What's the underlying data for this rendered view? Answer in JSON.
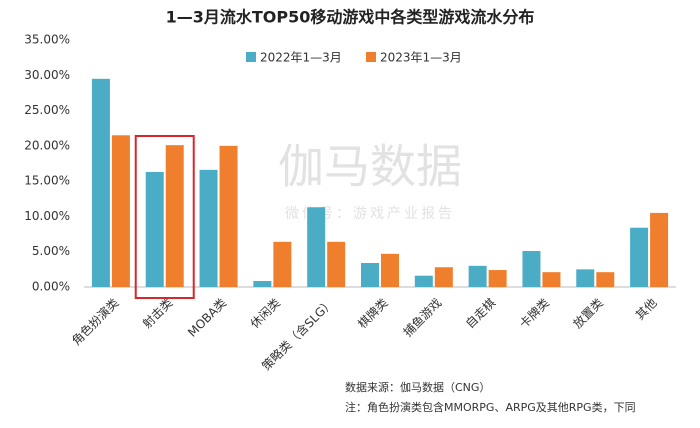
{
  "chart_data": {
    "type": "bar",
    "title": "1—3月流水TOP50移动游戏中各类型游戏流水分布",
    "categories": [
      "角色扮演类",
      "射击类",
      "MOBA类",
      "休闲类",
      "策略类（含SLG）",
      "棋牌类",
      "捕鱼游戏",
      "自走棋",
      "卡牌类",
      "放置类",
      "其他"
    ],
    "series": [
      {
        "name": "2022年1—3月",
        "color": "#4bacc6",
        "values": [
          29.5,
          16.3,
          16.6,
          0.85,
          11.3,
          3.4,
          1.6,
          3.0,
          5.1,
          2.5,
          8.4
        ]
      },
      {
        "name": "2023年1—3月",
        "color": "#f07f2d",
        "values": [
          21.5,
          20.1,
          20.0,
          6.4,
          6.4,
          4.7,
          2.8,
          2.4,
          2.1,
          2.1,
          10.5
        ]
      }
    ],
    "ylim": [
      0,
      35
    ],
    "yticks": [
      {
        "value": 0,
        "label": "0.00%"
      },
      {
        "value": 5,
        "label": "5.00%"
      },
      {
        "value": 10,
        "label": "10.00%"
      },
      {
        "value": 15,
        "label": "15.00%"
      },
      {
        "value": 20,
        "label": "20.00%"
      },
      {
        "value": 25,
        "label": "25.00%"
      },
      {
        "value": 30,
        "label": "30.00%"
      },
      {
        "value": 35,
        "label": "35.00%"
      }
    ],
    "grid": false,
    "legend_position": "top",
    "watermark": "伽马数据",
    "watermark_sub": "微信号：游戏产业报告",
    "source": "数据来源：伽马数据（CNG）",
    "note": "注：角色扮演类包含MMORPG、ARPG及其他RPG类，下同"
  }
}
